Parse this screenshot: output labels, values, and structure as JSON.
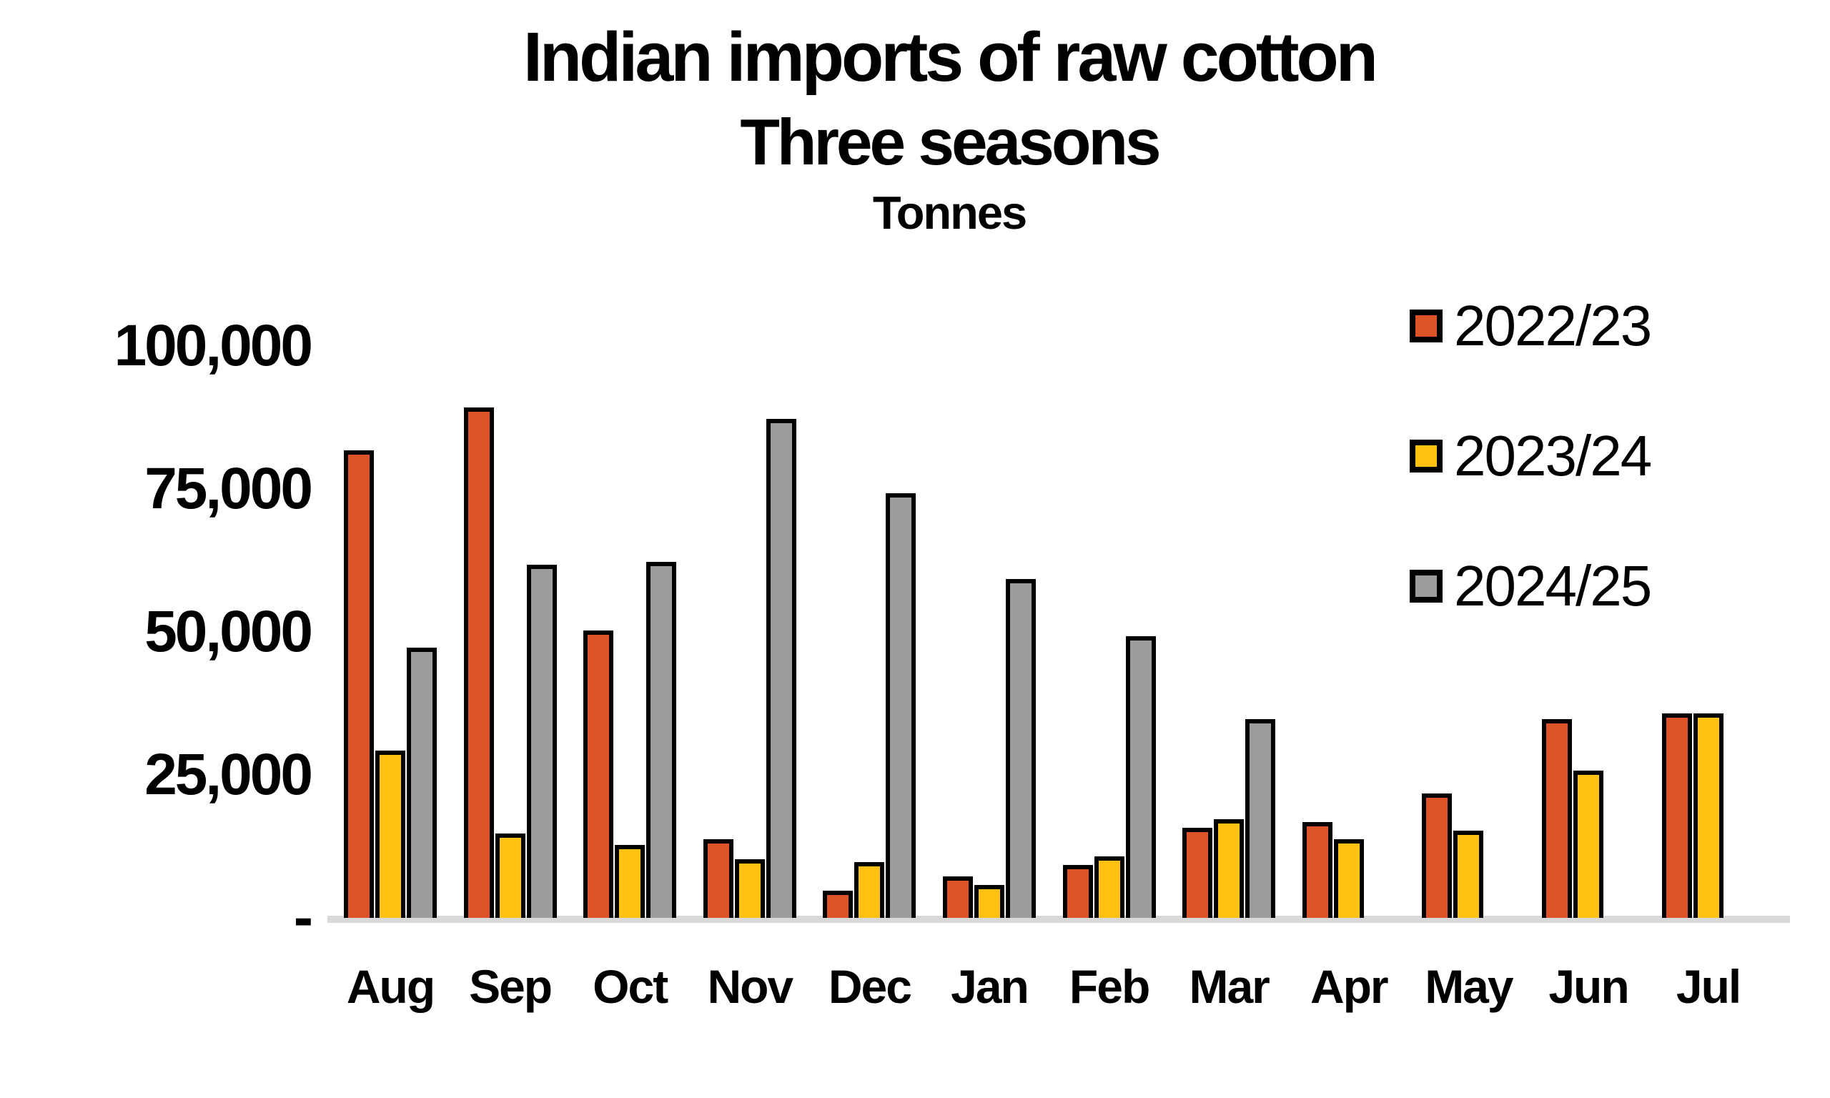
{
  "title": "Indian imports of raw cotton",
  "subtitle": "Three seasons",
  "units_label": "Tonnes",
  "colors": {
    "series_2022_23": "#dc5427",
    "series_2023_24": "#ffc212",
    "series_2024_25": "#9c9c9c",
    "bar_outline": "#000000",
    "axis_line": "#d9d9d9",
    "text": "#000000",
    "background": "#ffffff"
  },
  "legend": [
    {
      "label": "2022/23",
      "color": "#dc5427"
    },
    {
      "label": "2023/24",
      "color": "#ffc212"
    },
    {
      "label": "2024/25",
      "color": "#9c9c9c"
    }
  ],
  "y_axis": {
    "ticks": [
      {
        "label": "100,000",
        "value": 100000
      },
      {
        "label": "75,000",
        "value": 75000
      },
      {
        "label": "50,000",
        "value": 50000
      },
      {
        "label": "25,000",
        "value": 25000
      },
      {
        "label": "-",
        "value": 0
      }
    ]
  },
  "chart_data": {
    "type": "bar",
    "title": "Indian imports of raw cotton",
    "subtitle": "Three seasons",
    "ylabel": "Tonnes",
    "xlabel": "",
    "ylim": [
      0,
      100000
    ],
    "grid": false,
    "legend_position": "right-top",
    "categories": [
      "Aug",
      "Sep",
      "Oct",
      "Nov",
      "Dec",
      "Jan",
      "Feb",
      "Mar",
      "Apr",
      "May",
      "Jun",
      "Jul"
    ],
    "series": [
      {
        "name": "2022/23",
        "color": "#dc5427",
        "values": [
          81000,
          88500,
          49500,
          13000,
          4000,
          6500,
          8500,
          15000,
          16000,
          21000,
          34000,
          35000
        ]
      },
      {
        "name": "2023/24",
        "color": "#ffc212",
        "values": [
          28500,
          14000,
          12000,
          9500,
          9000,
          5000,
          10000,
          16500,
          13000,
          14500,
          25000,
          35000
        ]
      },
      {
        "name": "2024/25",
        "color": "#9c9c9c",
        "values": [
          46500,
          61000,
          61500,
          86500,
          73500,
          58500,
          48500,
          34000,
          null,
          null,
          null,
          null
        ]
      }
    ]
  }
}
